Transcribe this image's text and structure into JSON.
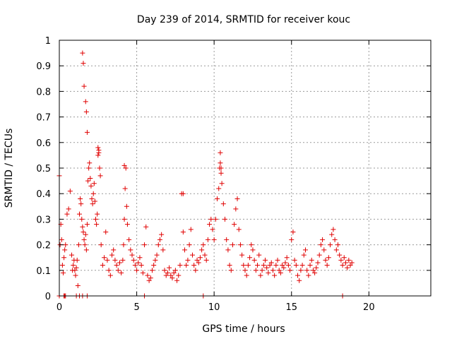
{
  "chart_data": {
    "type": "scatter",
    "title": "Day 239 of 2014, SRMTID for receiver kouc",
    "xlabel": "GPS time / hours",
    "ylabel": "SRMTID / TECUs",
    "xlim": [
      0,
      24
    ],
    "ylim": [
      0,
      1
    ],
    "xticks": [
      0,
      5,
      10,
      15,
      20
    ],
    "xtick_labels": [
      "0",
      "5",
      "10",
      "15",
      "20"
    ],
    "yticks": [
      0,
      0.1,
      0.2,
      0.3,
      0.4,
      0.5,
      0.6,
      0.7,
      0.8,
      0.9,
      1
    ],
    "ytick_labels": [
      "0",
      "0.1",
      "0.2",
      "0.3",
      "0.4",
      "0.5",
      "0.6",
      "0.7",
      "0.8",
      "0.9",
      "1"
    ],
    "grid": true,
    "marker": "+",
    "marker_color": "#e00000",
    "series": [
      {
        "name": "SRMTID",
        "x": [
          0.0,
          0.05,
          0.1,
          0.15,
          0.2,
          0.25,
          0.3,
          0.35,
          0.4,
          0.5,
          0.6,
          0.7,
          0.8,
          0.85,
          0.9,
          0.95,
          1.0,
          1.05,
          1.1,
          1.15,
          1.2,
          1.25,
          1.3,
          1.35,
          1.4,
          1.45,
          1.5,
          1.55,
          1.6,
          1.65,
          1.7,
          1.75,
          1.8,
          1.85,
          1.9,
          1.95,
          2.0,
          2.05,
          2.1,
          2.15,
          2.2,
          2.25,
          2.3,
          2.35,
          2.4,
          2.45,
          2.5,
          2.55,
          2.6,
          2.65,
          2.7,
          2.8,
          2.9,
          3.0,
          3.1,
          3.2,
          3.3,
          3.4,
          3.5,
          3.6,
          3.7,
          3.8,
          3.9,
          4.0,
          4.1,
          4.15,
          4.2,
          4.25,
          4.3,
          4.35,
          4.4,
          4.5,
          4.6,
          4.7,
          4.8,
          4.9,
          5.0,
          5.1,
          5.2,
          5.3,
          5.4,
          5.5,
          5.6,
          5.7,
          5.8,
          5.9,
          6.0,
          6.1,
          6.2,
          6.3,
          6.4,
          6.5,
          6.6,
          6.7,
          6.8,
          6.9,
          7.0,
          7.1,
          7.2,
          7.3,
          7.4,
          7.5,
          7.6,
          7.7,
          7.8,
          7.9,
          8.0,
          8.1,
          8.2,
          8.3,
          8.4,
          8.5,
          8.6,
          8.7,
          8.8,
          8.9,
          9.0,
          9.1,
          9.2,
          9.3,
          9.4,
          9.5,
          9.6,
          9.7,
          9.8,
          9.9,
          10.0,
          10.1,
          10.2,
          10.3,
          10.35,
          10.4,
          10.45,
          10.5,
          10.6,
          10.7,
          10.8,
          10.9,
          11.0,
          11.1,
          11.2,
          11.3,
          11.4,
          11.5,
          11.6,
          11.7,
          11.8,
          11.9,
          12.0,
          12.1,
          12.2,
          12.3,
          12.4,
          12.5,
          12.6,
          12.7,
          12.8,
          12.9,
          13.0,
          13.1,
          13.2,
          13.3,
          13.4,
          13.5,
          13.6,
          13.7,
          13.8,
          13.9,
          14.0,
          14.1,
          14.2,
          14.3,
          14.4,
          14.5,
          14.6,
          14.7,
          14.8,
          14.9,
          15.0,
          15.1,
          15.2,
          15.3,
          15.4,
          15.5,
          15.6,
          15.7,
          15.8,
          15.9,
          16.0,
          16.1,
          16.2,
          16.3,
          16.4,
          16.5,
          16.6,
          16.7,
          16.8,
          16.9,
          17.0,
          17.1,
          17.2,
          17.3,
          17.4,
          17.5,
          17.6,
          17.7,
          17.8,
          17.9,
          18.0,
          18.1,
          18.2,
          18.3,
          18.4,
          18.5,
          18.6,
          18.7,
          18.8,
          18.9,
          1.5,
          1.55,
          1.6,
          1.7,
          1.75,
          1.8,
          2.5,
          2.55,
          4.2,
          10.4,
          10.45,
          8.0,
          0.0,
          0.3,
          0.35,
          0.4,
          1.1,
          1.3,
          1.5,
          1.8,
          5.5,
          9.3,
          18.3
        ],
        "y": [
          0.47,
          0.2,
          0.28,
          0.22,
          0.12,
          0.09,
          0.15,
          0.18,
          0.2,
          0.32,
          0.34,
          0.41,
          0.16,
          0.1,
          0.12,
          0.14,
          0.1,
          0.08,
          0.11,
          0.14,
          0.04,
          0.2,
          0.32,
          0.38,
          0.36,
          0.3,
          0.27,
          0.25,
          0.22,
          0.2,
          0.24,
          0.18,
          0.28,
          0.45,
          0.5,
          0.52,
          0.46,
          0.43,
          0.38,
          0.36,
          0.4,
          0.44,
          0.37,
          0.3,
          0.28,
          0.32,
          0.55,
          0.57,
          0.5,
          0.47,
          0.2,
          0.12,
          0.15,
          0.25,
          0.14,
          0.1,
          0.08,
          0.16,
          0.18,
          0.14,
          0.12,
          0.1,
          0.13,
          0.09,
          0.14,
          0.2,
          0.3,
          0.42,
          0.5,
          0.35,
          0.28,
          0.22,
          0.18,
          0.16,
          0.14,
          0.12,
          0.1,
          0.13,
          0.15,
          0.12,
          0.09,
          0.2,
          0.27,
          0.08,
          0.06,
          0.07,
          0.1,
          0.12,
          0.14,
          0.16,
          0.2,
          0.22,
          0.24,
          0.18,
          0.1,
          0.08,
          0.09,
          0.11,
          0.08,
          0.07,
          0.09,
          0.1,
          0.06,
          0.08,
          0.12,
          0.4,
          0.25,
          0.18,
          0.12,
          0.14,
          0.2,
          0.26,
          0.16,
          0.12,
          0.1,
          0.14,
          0.13,
          0.15,
          0.18,
          0.2,
          0.16,
          0.14,
          0.22,
          0.28,
          0.3,
          0.26,
          0.22,
          0.3,
          0.38,
          0.42,
          0.5,
          0.56,
          0.48,
          0.44,
          0.36,
          0.3,
          0.22,
          0.18,
          0.12,
          0.1,
          0.2,
          0.28,
          0.34,
          0.38,
          0.26,
          0.2,
          0.16,
          0.12,
          0.1,
          0.08,
          0.12,
          0.15,
          0.2,
          0.18,
          0.14,
          0.1,
          0.12,
          0.16,
          0.08,
          0.1,
          0.12,
          0.14,
          0.11,
          0.09,
          0.12,
          0.13,
          0.1,
          0.08,
          0.12,
          0.14,
          0.1,
          0.09,
          0.12,
          0.11,
          0.13,
          0.15,
          0.12,
          0.1,
          0.22,
          0.25,
          0.14,
          0.12,
          0.08,
          0.06,
          0.1,
          0.12,
          0.16,
          0.18,
          0.1,
          0.08,
          0.12,
          0.14,
          0.1,
          0.09,
          0.11,
          0.13,
          0.16,
          0.2,
          0.22,
          0.18,
          0.14,
          0.12,
          0.15,
          0.2,
          0.24,
          0.26,
          0.22,
          0.18,
          0.2,
          0.16,
          0.14,
          0.12,
          0.15,
          0.13,
          0.11,
          0.14,
          0.12,
          0.13,
          0.95,
          0.91,
          0.82,
          0.76,
          0.72,
          0.64,
          0.58,
          0.56,
          0.51,
          0.52,
          0.5,
          0.4,
          0.0,
          0.0,
          0.0,
          0.0,
          0.0,
          0.0,
          0.0,
          0.0,
          0.0,
          0.0,
          0.0
        ]
      }
    ]
  }
}
